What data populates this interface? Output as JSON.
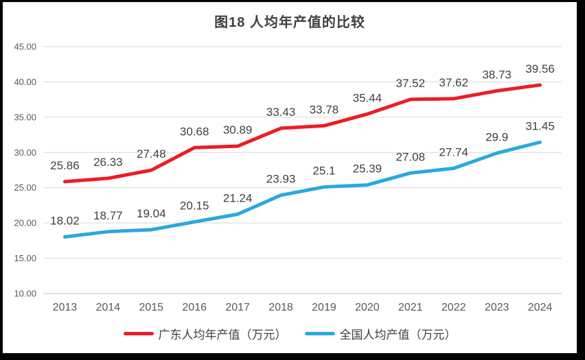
{
  "window": {
    "frame_color": "#000000",
    "background_color": "#ffffff"
  },
  "chart_data": {
    "type": "line",
    "title": "图18 人均年产值的比较",
    "categories": [
      "2013",
      "2014",
      "2015",
      "2016",
      "2017",
      "2018",
      "2019",
      "2020",
      "2021",
      "2022",
      "2023",
      "2024"
    ],
    "series": [
      {
        "name": "广东人均年产值（万元）",
        "color": "#ed1c24",
        "values": [
          25.86,
          26.33,
          27.48,
          30.68,
          30.89,
          33.43,
          33.78,
          35.44,
          37.52,
          37.62,
          38.73,
          39.56
        ]
      },
      {
        "name": "全国人均产值（万元）",
        "color": "#29a8df",
        "values": [
          18.02,
          18.77,
          19.04,
          20.15,
          21.24,
          23.93,
          25.1,
          25.39,
          27.08,
          27.74,
          29.9,
          31.45
        ]
      }
    ],
    "ylim": [
      10,
      45
    ],
    "ytick_step": 5,
    "ytick_labels": [
      "45.00",
      "40.00",
      "35.00",
      "30.00",
      "25.00",
      "20.00",
      "15.00",
      "10.00"
    ],
    "grid": true,
    "data_labels": true,
    "legend_position": "bottom"
  },
  "styles": {
    "gridline_color": "#d9d9d9",
    "axisline_color": "#bfbfbf",
    "tick_label_color": "#595959",
    "data_label_color": "#404040",
    "title_color": "#404040",
    "line_width": 5
  }
}
